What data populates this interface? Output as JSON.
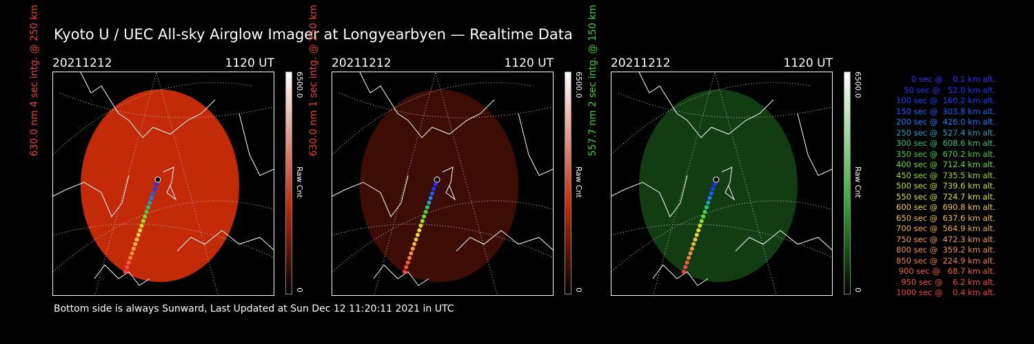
{
  "title": "Kyoto U / UEC All-sky Airglow Imager at Longyearbyen — Realtime Data",
  "footer": "Bottom side is always Sunward, Last Updated at Sun Dec 12 11:20:11 2021 in UTC",
  "panels": [
    {
      "date": "20211212",
      "time": "1120 UT",
      "side_label": "630.0 nm 4 sec intg. @ 250 km",
      "side_color": "#e8432a",
      "cbar_max": "6500.0",
      "cbar_min": "0",
      "cbar_label": "Raw Cnt",
      "image_color": "#c22a08",
      "cbar_top": "#ffffff",
      "cbar_bottom": "#c22a08"
    },
    {
      "date": "20211212",
      "time": "1120 UT",
      "side_label": "630.0 nm 1 sec intg. @ 250 km",
      "side_color": "#e8432a",
      "cbar_max": "6500.0",
      "cbar_min": "0",
      "cbar_label": "Raw Cnt",
      "image_color": "#3d0c05",
      "cbar_top": "#ffffff",
      "cbar_bottom": "#c22a08"
    },
    {
      "date": "20211212",
      "time": "1120 UT",
      "side_label": "557.7 nm 2 sec intg. @ 150 km",
      "side_color": "#3ad23a",
      "cbar_max": "6500.0",
      "cbar_min": "0",
      "cbar_label": "Raw Cnt",
      "image_color": "#123c12",
      "cbar_top": "#ffffff",
      "cbar_bottom": "#2ea82e"
    }
  ],
  "legend": [
    {
      "text": "   0 sec @    0.1 km alt.",
      "color": "#3030ff"
    },
    {
      "text": "  50 sec @   52.0 km alt.",
      "color": "#2030ff"
    },
    {
      "text": " 100 sec @  160.2 km alt.",
      "color": "#1040ff"
    },
    {
      "text": " 150 sec @  303.8 km alt.",
      "color": "#1060ff"
    },
    {
      "text": " 200 sec @  426.0 km alt.",
      "color": "#1080ff"
    },
    {
      "text": " 250 sec @  527.4 km alt.",
      "color": "#20a0c0"
    },
    {
      "text": " 300 sec @  608.6 km alt.",
      "color": "#30c080"
    },
    {
      "text": " 350 sec @  670.2 km alt.",
      "color": "#40d040"
    },
    {
      "text": " 400 sec @  712.4 km alt.",
      "color": "#60e030"
    },
    {
      "text": " 450 sec @  735.5 km alt.",
      "color": "#90e020"
    },
    {
      "text": " 500 sec @  739.6 km alt.",
      "color": "#c0e020"
    },
    {
      "text": " 550 sec @  724.7 km alt.",
      "color": "#e0e030"
    },
    {
      "text": " 600 sec @  690.8 km alt.",
      "color": "#f0d040"
    },
    {
      "text": " 650 sec @  637.6 km alt.",
      "color": "#f0c040"
    },
    {
      "text": " 700 sec @  564.9 km alt.",
      "color": "#f0b040"
    },
    {
      "text": " 750 sec @  472.3 km alt.",
      "color": "#f0a040"
    },
    {
      "text": " 800 sec @  359.2 km alt.",
      "color": "#f09040"
    },
    {
      "text": " 850 sec @  224.9 km alt.",
      "color": "#f08040"
    },
    {
      "text": " 900 sec @   68.7 km alt.",
      "color": "#f06040"
    },
    {
      "text": " 950 sec @    6.2 km alt.",
      "color": "#f05040"
    },
    {
      "text": "1000 sec @    0.4 km alt.",
      "color": "#f04040"
    }
  ]
}
